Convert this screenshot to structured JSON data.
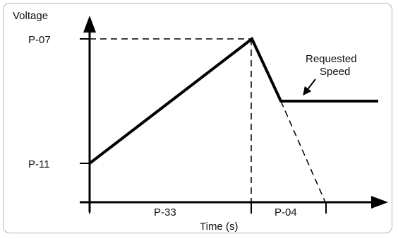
{
  "axes": {
    "y_label": "Voltage",
    "x_label": "Time (s)"
  },
  "y_ticks": {
    "upper": "P-07",
    "lower": "P-11"
  },
  "x_segments": {
    "first": "P-33",
    "second": "P-04"
  },
  "annotation": {
    "line1": "Requested",
    "line2": "Speed"
  },
  "colors": {
    "line": "#000000",
    "frame": "#b5b5b5"
  }
}
